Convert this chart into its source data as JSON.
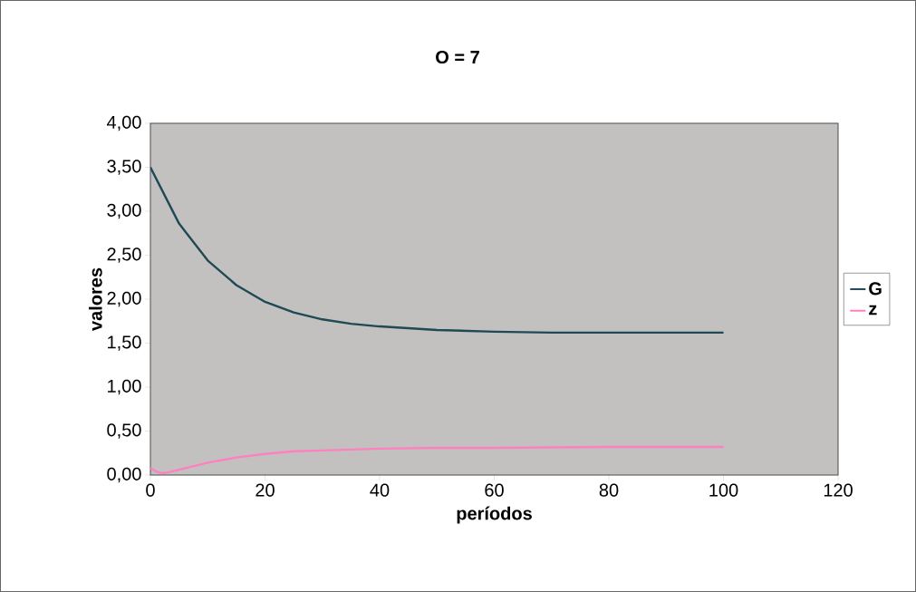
{
  "chart_data": {
    "type": "line",
    "title": "O = 7",
    "xlabel": "períodos",
    "ylabel": "valores",
    "xlim": [
      0,
      120
    ],
    "xticks": [
      0,
      20,
      40,
      60,
      80,
      100,
      120
    ],
    "ylim": [
      0,
      4
    ],
    "yticks": [
      {
        "value": 0,
        "label": "0,00"
      },
      {
        "value": 0.5,
        "label": "0,50"
      },
      {
        "value": 1,
        "label": "1,00"
      },
      {
        "value": 1.5,
        "label": "1,50"
      },
      {
        "value": 2,
        "label": "2,00"
      },
      {
        "value": 2.5,
        "label": "2,50"
      },
      {
        "value": 3,
        "label": "3,00"
      },
      {
        "value": 3.5,
        "label": "3,50"
      },
      {
        "value": 4,
        "label": "4,00"
      }
    ],
    "legend": "right",
    "grid": false,
    "marker": "none",
    "line_style": "solid",
    "series": [
      {
        "name": "G",
        "color": "#1f4a55",
        "x": [
          0,
          5,
          10,
          15,
          20,
          25,
          30,
          35,
          40,
          50,
          60,
          70,
          80,
          90,
          100
        ],
        "values": [
          3.5,
          2.86,
          2.44,
          2.16,
          1.97,
          1.85,
          1.77,
          1.72,
          1.69,
          1.65,
          1.63,
          1.62,
          1.62,
          1.62,
          1.62
        ]
      },
      {
        "name": "z",
        "color": "#ff80c0",
        "x": [
          0,
          1,
          2,
          3,
          5,
          10,
          15,
          20,
          25,
          30,
          40,
          50,
          60,
          80,
          100
        ],
        "values": [
          0.08,
          0.04,
          0.02,
          0.03,
          0.06,
          0.14,
          0.2,
          0.24,
          0.27,
          0.28,
          0.3,
          0.31,
          0.31,
          0.32,
          0.32
        ]
      }
    ]
  }
}
